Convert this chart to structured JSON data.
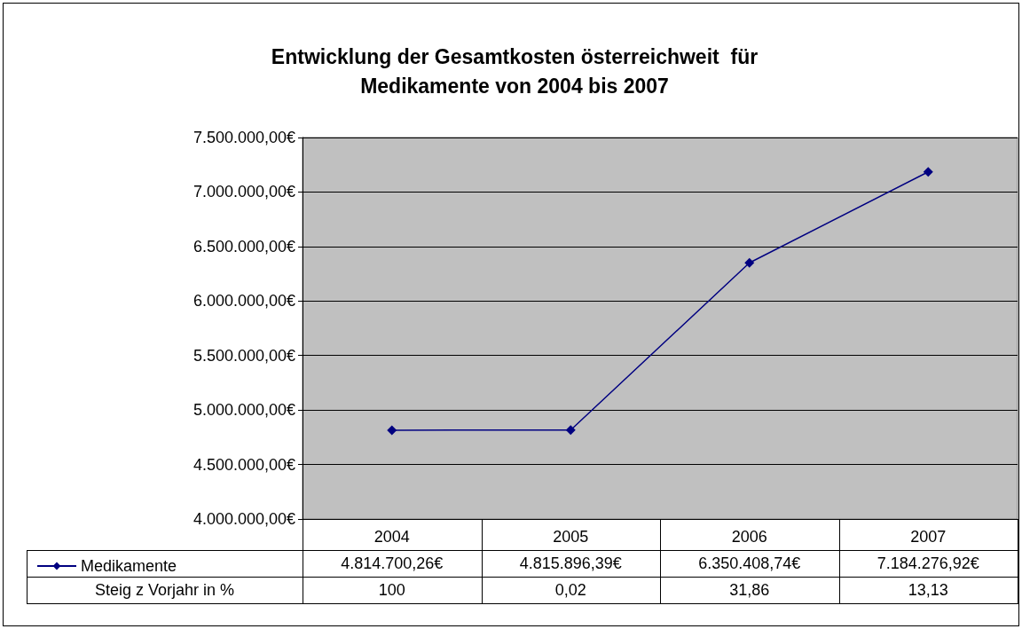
{
  "chart_data": {
    "type": "line",
    "title": "Entwicklung der Gesamtkosten österreichweit  für\nMedikamente von 2004 bis 2007",
    "categories": [
      "2004",
      "2005",
      "2006",
      "2007"
    ],
    "series": [
      {
        "name": "Medikamente",
        "color": "#000080",
        "values": [
          4814700.26,
          4815896.39,
          6350408.74,
          7184276.92
        ],
        "value_labels": [
          "4.814.700,26€",
          "4.815.896,39€",
          "6.350.408,74€",
          "7.184.276,92€"
        ]
      }
    ],
    "annotations": [
      "Steig z Vorjahr in %",
      "100",
      "0,02",
      "31,86",
      "13,13"
    ],
    "ylim": [
      4000000,
      7500000
    ],
    "yticks": [
      {
        "value": 4000000,
        "label": "4.000.000,00€"
      },
      {
        "value": 4500000,
        "label": "4.500.000,00€"
      },
      {
        "value": 5000000,
        "label": "5.000.000,00€"
      },
      {
        "value": 5500000,
        "label": "5.500.000,00€"
      },
      {
        "value": 6000000,
        "label": "6.000.000,00€"
      },
      {
        "value": 6500000,
        "label": "6.500.000,00€"
      },
      {
        "value": 7000000,
        "label": "7.000.000,00€"
      },
      {
        "value": 7500000,
        "label": "7.500.000,00€"
      }
    ],
    "grid": "y",
    "legend": "bottom left",
    "marker": "diamond",
    "line_style": "solid"
  }
}
